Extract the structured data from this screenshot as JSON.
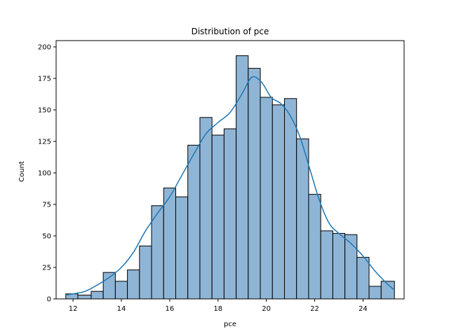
{
  "chart_data": {
    "type": "bar",
    "title": "Distribution of pce",
    "xlabel": "pce",
    "ylabel": "Count",
    "bin_edges": [
      11.7,
      12.2,
      12.75,
      13.25,
      13.75,
      14.25,
      14.75,
      15.25,
      15.75,
      16.25,
      16.75,
      17.25,
      17.75,
      18.25,
      18.75,
      19.25,
      19.75,
      20.25,
      20.75,
      21.25,
      21.75,
      22.25,
      22.75,
      23.25,
      23.75,
      24.25,
      24.75,
      25.3
    ],
    "values": [
      4,
      3,
      6,
      21,
      14,
      23,
      42,
      74,
      88,
      81,
      122,
      144,
      130,
      135,
      193,
      183,
      160,
      154,
      159,
      127,
      83,
      54,
      52,
      51,
      33,
      10,
      14
    ],
    "kde": {
      "x": [
        11.7,
        12.0,
        12.5,
        13.0,
        13.5,
        14.0,
        14.5,
        15.0,
        15.5,
        16.0,
        16.5,
        17.0,
        17.5,
        18.0,
        18.5,
        19.0,
        19.4,
        19.8,
        20.2,
        20.6,
        21.0,
        21.4,
        21.8,
        22.2,
        22.6,
        23.0,
        23.5,
        24.0,
        24.5,
        25.0,
        25.3
      ],
      "y": [
        3,
        4,
        6,
        11,
        17,
        25,
        37,
        54,
        68,
        81,
        98,
        115,
        131,
        140,
        148,
        163,
        176,
        172,
        160,
        155,
        145,
        128,
        103,
        78,
        60,
        52,
        44,
        34,
        22,
        12,
        7
      ]
    },
    "xticks": [
      12,
      14,
      16,
      18,
      20,
      22,
      24
    ],
    "yticks": [
      0,
      25,
      50,
      75,
      100,
      125,
      150,
      175,
      200
    ],
    "xlim": [
      11.3,
      25.7
    ],
    "ylim": [
      0,
      205
    ],
    "grid": false,
    "colors": {
      "bar_fill": "#8fb5d6",
      "bar_edge": "#000000",
      "kde_line": "#1f77b4"
    }
  }
}
